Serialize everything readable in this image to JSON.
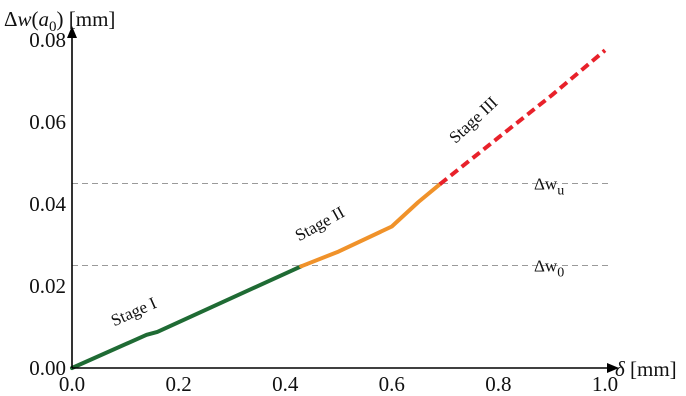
{
  "chart_data": {
    "type": "line",
    "xlabel": "δ [mm]",
    "ylabel": "Δw(a0) [mm]",
    "xlim": [
      0.0,
      1.0
    ],
    "ylim": [
      0.0,
      0.08
    ],
    "xticks": [
      0.0,
      0.2,
      0.4,
      0.6,
      0.8,
      1.0
    ],
    "yticks": [
      0.0,
      0.02,
      0.04,
      0.06,
      0.08
    ],
    "x_tick_labels": [
      "0.0",
      "0.2",
      "0.4",
      "0.6",
      "0.8",
      "1.0"
    ],
    "y_tick_labels": [
      "0.00",
      "0.02",
      "0.04",
      "0.06",
      "0.08"
    ],
    "grid": false,
    "series": [
      {
        "label": "Stage I",
        "color": "#1f6b34",
        "style": "solid",
        "x": [
          0.0,
          0.14,
          0.16,
          0.43
        ],
        "y": [
          0.0,
          0.0081,
          0.0088,
          0.0248
        ]
      },
      {
        "label": "Stage II",
        "color": "#f0922a",
        "style": "solid",
        "x": [
          0.43,
          0.5,
          0.6,
          0.65,
          0.69
        ],
        "y": [
          0.0248,
          0.0284,
          0.0345,
          0.0405,
          0.0448
        ]
      },
      {
        "label": "Stage III",
        "color": "#e8212a",
        "style": "dashed",
        "x": [
          0.69,
          0.8,
          0.9,
          1.0
        ],
        "y": [
          0.0448,
          0.0562,
          0.0665,
          0.0775
        ]
      }
    ],
    "reference_lines": [
      {
        "label_main": "Δw",
        "label_sub": "0",
        "y": 0.025
      },
      {
        "label_main": "Δw",
        "label_sub": "u",
        "y": 0.045
      }
    ],
    "annotations": [
      {
        "text": "Stage I",
        "x": 0.12,
        "y": 0.0125,
        "angle_deg": -24
      },
      {
        "text": "Stage II",
        "x": 0.47,
        "y": 0.034,
        "angle_deg": -29
      },
      {
        "text": "Stage III",
        "x": 0.76,
        "y": 0.0595,
        "angle_deg": -43
      }
    ]
  }
}
